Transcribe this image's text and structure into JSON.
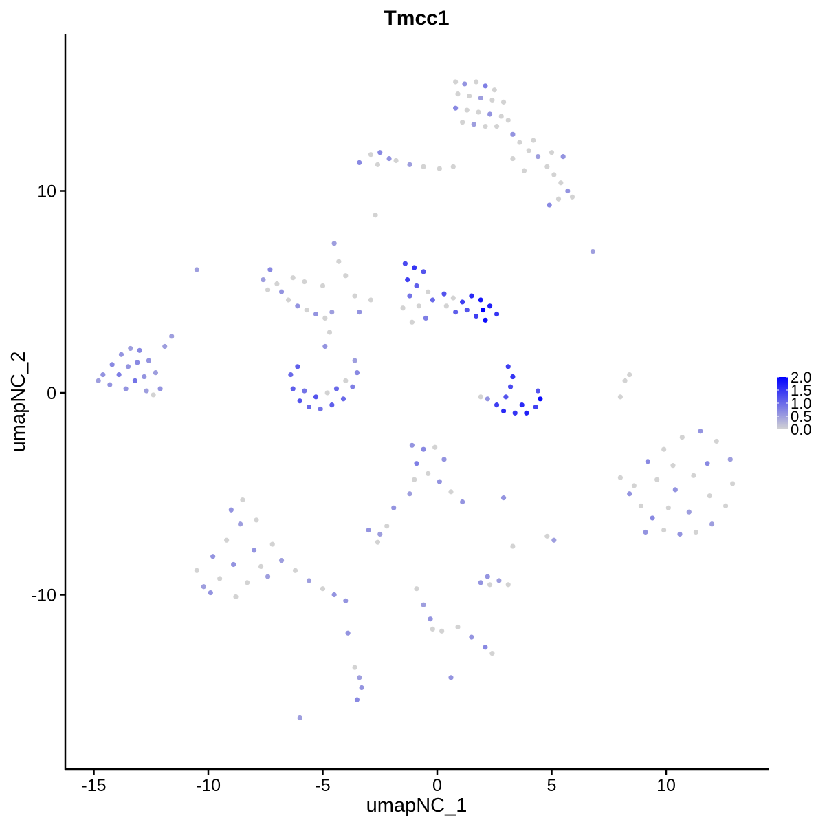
{
  "chart_data": {
    "type": "scatter",
    "title": "Tmcc1",
    "xlabel": "umapNC_1",
    "ylabel": "umapNC_2",
    "xlim": [
      -16.5,
      14.5
    ],
    "ylim": [
      -18.2,
      17.8
    ],
    "xticks": [
      -15,
      -10,
      -5,
      0,
      5,
      10
    ],
    "yticks": [
      -10,
      0,
      10
    ],
    "xtick_labels": [
      "-15",
      "-10",
      "-5",
      "0",
      "5",
      "10"
    ],
    "ytick_labels": [
      "-10",
      "0",
      "10"
    ],
    "grid": false,
    "legend": {
      "placement": "right",
      "type": "colorbar",
      "min": 0.0,
      "max": 2.0,
      "labels": [
        "2.0",
        "1.5",
        "1.0",
        "0.5",
        "0.0"
      ],
      "low_color": "#d3d3d3",
      "high_color": "#0000ff"
    },
    "points": [
      [
        0.8,
        15.4,
        0
      ],
      [
        1.2,
        15.3,
        0.6
      ],
      [
        1.7,
        15.4,
        0
      ],
      [
        2.1,
        15.2,
        0.8
      ],
      [
        2.5,
        15.0,
        0
      ],
      [
        0.9,
        14.8,
        0
      ],
      [
        1.4,
        14.7,
        0
      ],
      [
        1.9,
        14.6,
        0.5
      ],
      [
        2.4,
        14.5,
        0
      ],
      [
        2.9,
        14.4,
        0
      ],
      [
        0.8,
        14.1,
        0.7
      ],
      [
        1.3,
        14.0,
        0
      ],
      [
        1.8,
        13.9,
        0
      ],
      [
        2.3,
        13.8,
        0.6
      ],
      [
        2.8,
        13.7,
        0
      ],
      [
        1.1,
        13.4,
        0
      ],
      [
        1.6,
        13.3,
        0.5
      ],
      [
        2.1,
        13.2,
        0
      ],
      [
        2.6,
        13.2,
        0
      ],
      [
        3.1,
        13.5,
        0
      ],
      [
        3.3,
        12.8,
        0.6
      ],
      [
        3.6,
        12.4,
        0
      ],
      [
        4.0,
        12.0,
        0
      ],
      [
        4.4,
        11.7,
        0.5
      ],
      [
        4.8,
        11.2,
        0
      ],
      [
        5.1,
        10.8,
        0
      ],
      [
        5.4,
        10.4,
        0
      ],
      [
        5.7,
        10.0,
        0.6
      ],
      [
        5.9,
        9.7,
        0
      ],
      [
        5.3,
        9.6,
        0
      ],
      [
        4.9,
        9.3,
        0.7
      ],
      [
        5.5,
        11.7,
        0.6
      ],
      [
        5.0,
        11.9,
        0
      ],
      [
        4.2,
        12.5,
        0
      ],
      [
        3.8,
        11.0,
        0
      ],
      [
        3.3,
        11.6,
        0
      ],
      [
        -2.9,
        11.8,
        0
      ],
      [
        -2.5,
        11.9,
        0.7
      ],
      [
        -2.1,
        11.6,
        0.6
      ],
      [
        -2.6,
        11.3,
        0
      ],
      [
        -1.8,
        11.5,
        0
      ],
      [
        -1.2,
        11.3,
        0.5
      ],
      [
        -0.6,
        11.2,
        0
      ],
      [
        0.1,
        11.1,
        0
      ],
      [
        0.7,
        11.2,
        0
      ],
      [
        -3.4,
        11.4,
        0.7
      ],
      [
        -14.6,
        0.9,
        0.6
      ],
      [
        -14.2,
        1.4,
        0.7
      ],
      [
        -13.8,
        1.9,
        0.6
      ],
      [
        -13.4,
        2.2,
        0.5
      ],
      [
        -13.0,
        2.1,
        0.7
      ],
      [
        -12.6,
        1.6,
        0.6
      ],
      [
        -12.3,
        1.0,
        0.5
      ],
      [
        -14.3,
        0.4,
        0.6
      ],
      [
        -13.9,
        0.9,
        0.8
      ],
      [
        -13.5,
        1.3,
        0.6
      ],
      [
        -13.1,
        1.5,
        0.7
      ],
      [
        -12.8,
        0.8,
        0.6
      ],
      [
        -13.6,
        0.2,
        0.6
      ],
      [
        -13.2,
        0.6,
        0.9
      ],
      [
        -12.7,
        0.1,
        0.5
      ],
      [
        -12.1,
        0.2,
        0.6
      ],
      [
        -12.4,
        -0.1,
        0
      ],
      [
        -14.8,
        0.6,
        0.5
      ],
      [
        -11.9,
        2.3,
        0.5
      ],
      [
        -11.6,
        2.8,
        0.5
      ],
      [
        -6.4,
        0.9,
        1.0
      ],
      [
        -6.3,
        0.2,
        1.1
      ],
      [
        -6.0,
        -0.4,
        1.2
      ],
      [
        -5.6,
        -0.7,
        1.0
      ],
      [
        -5.1,
        -0.8,
        0.9
      ],
      [
        -4.6,
        -0.6,
        1.1
      ],
      [
        -4.1,
        -0.3,
        1.0
      ],
      [
        -3.7,
        0.3,
        0.8
      ],
      [
        -3.5,
        1.0,
        0.7
      ],
      [
        -3.6,
        1.6,
        0.5
      ],
      [
        -5.8,
        0.1,
        0.9
      ],
      [
        -5.3,
        -0.2,
        1.2
      ],
      [
        -4.8,
        0.0,
        0
      ],
      [
        -4.4,
        0.2,
        1.0
      ],
      [
        -4.0,
        0.6,
        0
      ],
      [
        -6.1,
        1.3,
        1.1
      ],
      [
        -4.9,
        2.3,
        0.6
      ],
      [
        -4.7,
        3.0,
        0
      ],
      [
        -7.6,
        5.6,
        0.5
      ],
      [
        -7.3,
        6.1,
        0.7
      ],
      [
        -7.0,
        5.4,
        0
      ],
      [
        -6.8,
        5.0,
        0.6
      ],
      [
        -6.5,
        4.6,
        0
      ],
      [
        -6.1,
        4.3,
        0.6
      ],
      [
        -5.7,
        4.1,
        0
      ],
      [
        -5.3,
        3.9,
        0.6
      ],
      [
        -4.9,
        3.7,
        0
      ],
      [
        -4.6,
        4.0,
        0.5
      ],
      [
        -7.4,
        5.1,
        0
      ],
      [
        -6.3,
        5.7,
        0
      ],
      [
        -5.8,
        5.5,
        0
      ],
      [
        -5.0,
        5.3,
        0
      ],
      [
        -4.5,
        7.4,
        0.5
      ],
      [
        -4.3,
        6.5,
        0
      ],
      [
        -4.0,
        5.8,
        0
      ],
      [
        -3.6,
        4.8,
        0
      ],
      [
        -3.4,
        4.0,
        0.6
      ],
      [
        -2.9,
        4.6,
        0
      ],
      [
        -1.4,
        6.4,
        1.3
      ],
      [
        -1.0,
        6.2,
        1.5
      ],
      [
        -0.6,
        6.0,
        1.2
      ],
      [
        -1.3,
        5.6,
        1.4
      ],
      [
        -0.9,
        5.3,
        1.1
      ],
      [
        -0.4,
        5.0,
        0
      ],
      [
        -1.2,
        4.8,
        0.9
      ],
      [
        -0.8,
        4.3,
        0
      ],
      [
        -1.5,
        4.2,
        0
      ],
      [
        -0.2,
        4.6,
        1.0
      ],
      [
        0.3,
        4.9,
        1.2
      ],
      [
        0.7,
        4.7,
        0
      ],
      [
        1.1,
        4.5,
        1.4
      ],
      [
        1.5,
        4.8,
        1.6
      ],
      [
        1.9,
        4.6,
        1.8
      ],
      [
        2.3,
        4.3,
        1.7
      ],
      [
        2.6,
        3.9,
        1.5
      ],
      [
        2.1,
        3.6,
        1.9
      ],
      [
        1.7,
        3.8,
        1.4
      ],
      [
        1.3,
        4.1,
        1.2
      ],
      [
        0.8,
        4.0,
        1.1
      ],
      [
        0.4,
        4.3,
        0
      ],
      [
        2.0,
        4.1,
        2.0
      ],
      [
        -1.1,
        3.5,
        0
      ],
      [
        -0.5,
        3.7,
        0.8
      ],
      [
        3.1,
        1.3,
        1.4
      ],
      [
        3.3,
        0.8,
        1.5
      ],
      [
        3.2,
        0.3,
        1.3
      ],
      [
        3.0,
        -0.2,
        1.2
      ],
      [
        2.6,
        -0.6,
        1.4
      ],
      [
        2.2,
        -0.3,
        0.6
      ],
      [
        2.9,
        -0.9,
        1.6
      ],
      [
        3.4,
        -1.0,
        1.5
      ],
      [
        3.9,
        -1.0,
        1.7
      ],
      [
        4.3,
        -0.7,
        1.4
      ],
      [
        4.5,
        -0.3,
        1.9
      ],
      [
        4.4,
        0.1,
        1.2
      ],
      [
        3.7,
        -0.6,
        1.6
      ],
      [
        1.9,
        -0.2,
        0
      ],
      [
        8.0,
        -4.2,
        0
      ],
      [
        8.4,
        -5.0,
        0.6
      ],
      [
        8.9,
        -5.6,
        0
      ],
      [
        9.4,
        -6.2,
        0.7
      ],
      [
        9.9,
        -6.8,
        0
      ],
      [
        10.6,
        -7.0,
        0.6
      ],
      [
        11.3,
        -6.9,
        0
      ],
      [
        12.0,
        -6.5,
        0.5
      ],
      [
        12.6,
        -5.6,
        0
      ],
      [
        12.9,
        -4.5,
        0
      ],
      [
        12.8,
        -3.3,
        0.5
      ],
      [
        12.2,
        -2.4,
        0
      ],
      [
        11.5,
        -1.9,
        0.6
      ],
      [
        10.7,
        -2.2,
        0
      ],
      [
        9.9,
        -2.8,
        0
      ],
      [
        9.2,
        -3.4,
        0.7
      ],
      [
        8.6,
        -4.6,
        0
      ],
      [
        9.6,
        -4.3,
        0
      ],
      [
        10.4,
        -4.8,
        0.6
      ],
      [
        11.2,
        -4.1,
        0
      ],
      [
        11.8,
        -3.5,
        0.7
      ],
      [
        10.1,
        -5.7,
        0
      ],
      [
        11.0,
        -5.9,
        0.5
      ],
      [
        11.9,
        -5.1,
        0
      ],
      [
        9.1,
        -6.9,
        0.6
      ],
      [
        10.3,
        -3.6,
        0
      ],
      [
        8.0,
        -0.2,
        0
      ],
      [
        8.2,
        0.6,
        0
      ],
      [
        8.4,
        0.9,
        0
      ],
      [
        -10.5,
        -8.8,
        0
      ],
      [
        -10.2,
        -9.6,
        0.5
      ],
      [
        -9.8,
        -8.1,
        0.6
      ],
      [
        -9.5,
        -9.2,
        0
      ],
      [
        -9.2,
        -7.3,
        0
      ],
      [
        -8.9,
        -8.5,
        0.6
      ],
      [
        -8.6,
        -6.5,
        0.5
      ],
      [
        -8.3,
        -9.4,
        0
      ],
      [
        -8.0,
        -7.8,
        0.6
      ],
      [
        -7.7,
        -8.6,
        0
      ],
      [
        -7.4,
        -9.1,
        0.5
      ],
      [
        -9.0,
        -5.8,
        0.6
      ],
      [
        -8.5,
        -5.3,
        0
      ],
      [
        -7.9,
        -6.3,
        0
      ],
      [
        -7.2,
        -7.5,
        0
      ],
      [
        -6.8,
        -8.3,
        0.5
      ],
      [
        -6.2,
        -8.8,
        0
      ],
      [
        -5.6,
        -9.3,
        0.5
      ],
      [
        -5.0,
        -9.7,
        0
      ],
      [
        -4.5,
        -10.0,
        0.6
      ],
      [
        -4.0,
        -10.3,
        0.6
      ],
      [
        -9.9,
        -9.9,
        0.6
      ],
      [
        -8.8,
        -10.1,
        0
      ],
      [
        -1.1,
        -2.6,
        0.6
      ],
      [
        -0.6,
        -2.8,
        0.7
      ],
      [
        -0.1,
        -2.7,
        0
      ],
      [
        0.3,
        -3.3,
        0.6
      ],
      [
        -0.9,
        -3.5,
        0.8
      ],
      [
        -0.4,
        -4.0,
        0
      ],
      [
        0.1,
        -4.4,
        0.6
      ],
      [
        -1.0,
        -4.3,
        0
      ],
      [
        0.6,
        -4.9,
        0
      ],
      [
        1.1,
        -5.4,
        0.6
      ],
      [
        -1.2,
        -5.0,
        0.5
      ],
      [
        -3.0,
        -6.8,
        0.6
      ],
      [
        -2.5,
        -7.0,
        0.5
      ],
      [
        -2.2,
        -6.6,
        0
      ],
      [
        -1.9,
        -5.7,
        0.6
      ],
      [
        -2.6,
        -7.4,
        0
      ],
      [
        1.9,
        -9.4,
        0.6
      ],
      [
        2.3,
        -9.5,
        0
      ],
      [
        2.7,
        -9.3,
        0.5
      ],
      [
        3.1,
        -9.5,
        0
      ],
      [
        2.2,
        -9.1,
        0.6
      ],
      [
        -0.9,
        -9.7,
        0
      ],
      [
        -0.6,
        -10.5,
        0.5
      ],
      [
        -0.3,
        -11.2,
        0.6
      ],
      [
        -0.2,
        -11.7,
        0
      ],
      [
        0.2,
        -11.8,
        0
      ],
      [
        0.9,
        -11.6,
        0
      ],
      [
        1.5,
        -12.1,
        0.6
      ],
      [
        2.1,
        -12.6,
        0.7
      ],
      [
        2.4,
        -12.9,
        0
      ],
      [
        -3.6,
        -13.6,
        0
      ],
      [
        -3.4,
        -14.1,
        0.5
      ],
      [
        -3.3,
        -14.6,
        0.6
      ],
      [
        -3.5,
        -15.2,
        0.7
      ],
      [
        -3.9,
        -11.9,
        0.6
      ],
      [
        4.8,
        -7.1,
        0
      ],
      [
        5.1,
        -7.3,
        0.5
      ],
      [
        3.3,
        -7.6,
        0
      ],
      [
        2.9,
        -5.2,
        0.6
      ],
      [
        -6.0,
        -16.1,
        0.5
      ],
      [
        0.6,
        -14.1,
        0.6
      ],
      [
        -10.5,
        6.1,
        0.5
      ],
      [
        -2.7,
        8.8,
        0
      ],
      [
        6.8,
        7.0,
        0.5
      ]
    ]
  }
}
